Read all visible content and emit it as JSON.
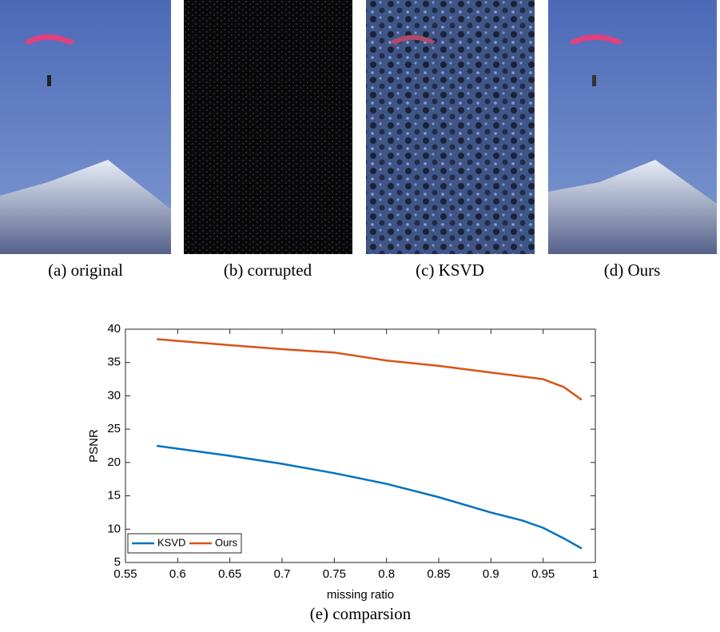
{
  "captions": [
    "(a) original",
    "(b) corrupted",
    "(c) KSVD",
    "(d) Ours",
    "(e) comparsion"
  ],
  "chart_data": {
    "type": "line",
    "xlabel": "missing ratio",
    "ylabel": "PSNR",
    "x": [
      0.58,
      0.65,
      0.7,
      0.75,
      0.8,
      0.85,
      0.9,
      0.93,
      0.95,
      0.97,
      0.987
    ],
    "series": [
      {
        "name": "KSVD",
        "color": "#0072bd",
        "values": [
          22.5,
          21,
          19.8,
          18.4,
          16.8,
          14.8,
          12.5,
          11.3,
          10.2,
          8.6,
          7.1
        ]
      },
      {
        "name": "Ours",
        "color": "#d95319",
        "values": [
          38.5,
          37.6,
          37,
          36.5,
          35.3,
          34.5,
          33.5,
          32.9,
          32.5,
          31.3,
          29.4
        ]
      }
    ],
    "xlim": [
      0.55,
      1
    ],
    "ylim": [
      5,
      40
    ],
    "xticks": [
      0.55,
      0.6,
      0.65,
      0.7,
      0.75,
      0.8,
      0.85,
      0.9,
      0.95,
      1
    ],
    "yticks": [
      5,
      10,
      15,
      20,
      25,
      30,
      35,
      40
    ],
    "grid": false,
    "legend": "lower-left"
  }
}
